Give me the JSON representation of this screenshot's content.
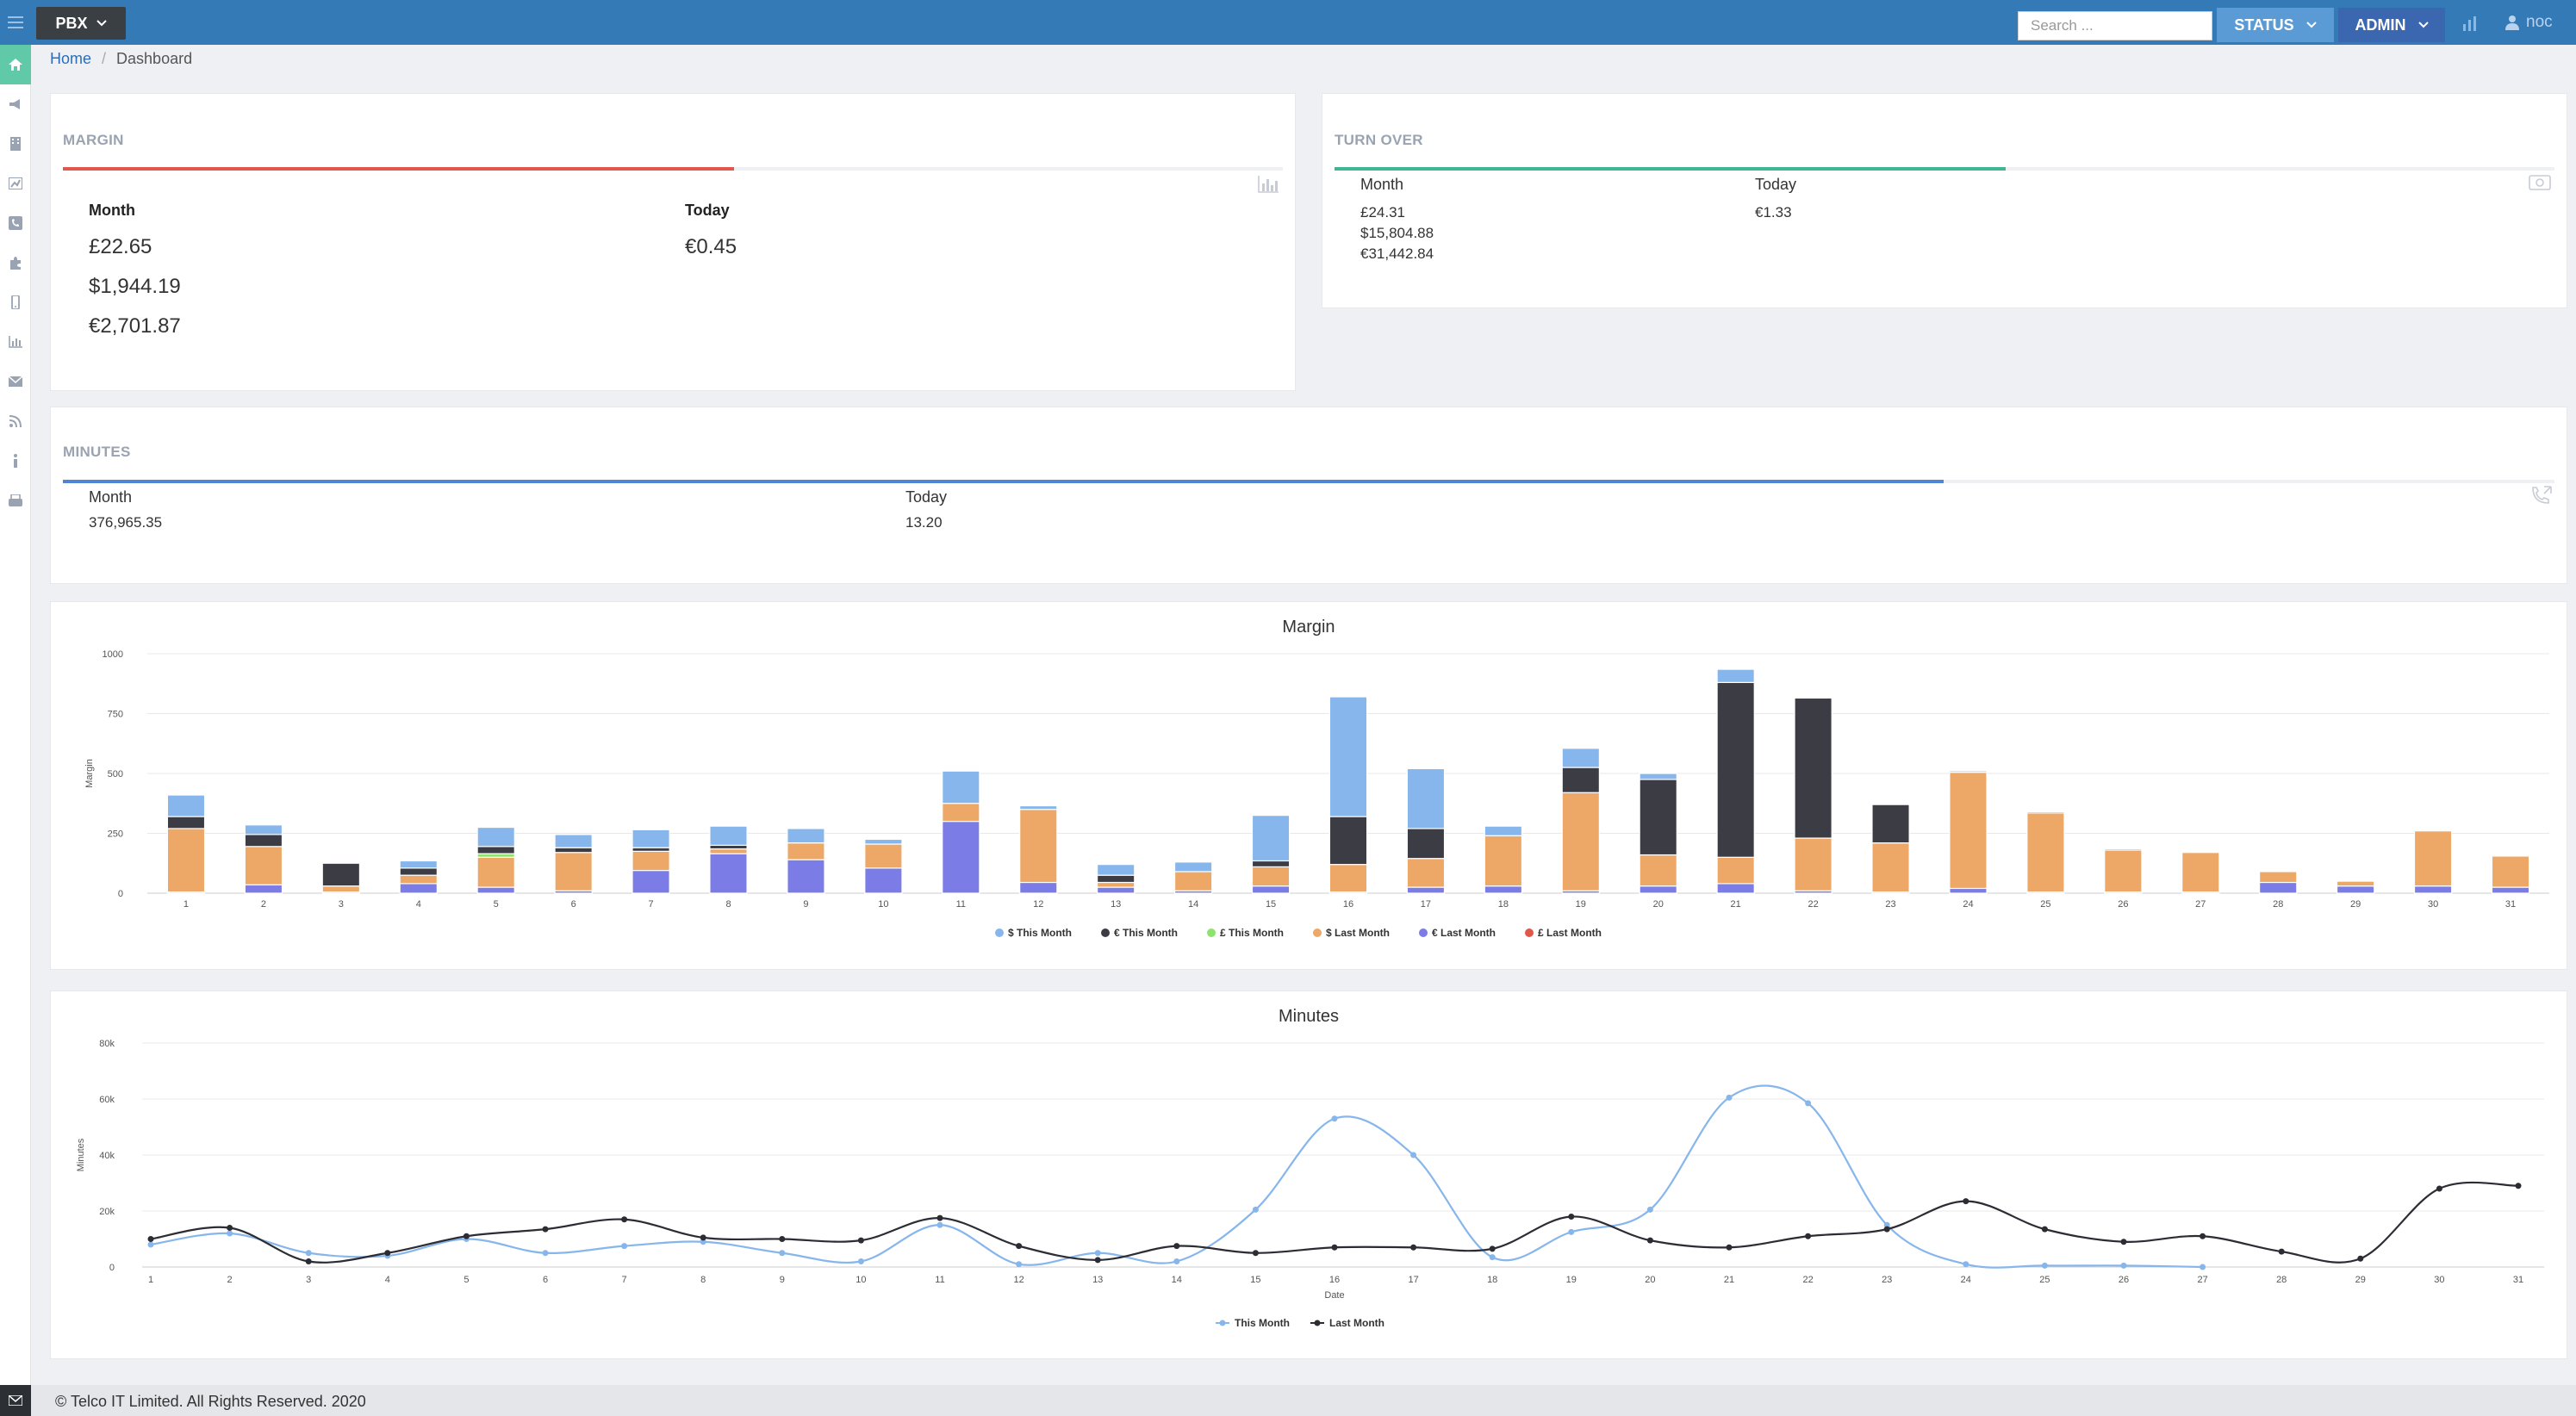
{
  "topbar": {
    "app_button": "PBX",
    "search_placeholder": "Search ...",
    "status_button": "STATUS",
    "admin_button": "ADMIN",
    "user_name": "noc"
  },
  "sidebar": {
    "items": [
      "home-icon",
      "megaphone-icon",
      "building-icon",
      "network-icon",
      "phone-icon",
      "puzzle-icon",
      "mobile-icon",
      "bar-chart-icon",
      "envelope-icon",
      "rss-icon",
      "info-icon",
      "fax-icon"
    ],
    "active": "home-icon"
  },
  "breadcrumb": {
    "home": "Home",
    "current": "Dashboard"
  },
  "margin_panel": {
    "title": "MARGIN",
    "progress": 0.55,
    "color": "#e0584b",
    "month_label": "Month",
    "today_label": "Today",
    "month_values": [
      "£22.65",
      "$1,944.19",
      "€2,701.87"
    ],
    "today_value": "€0.45"
  },
  "turnover_panel": {
    "title": "TURN OVER",
    "progress": 0.55,
    "color": "#3fb596",
    "month_label": "Month",
    "today_label": "Today",
    "month_values": [
      "£24.31",
      "$15,804.88",
      "€31,442.84"
    ],
    "today_value": "€1.33"
  },
  "minutes_panel": {
    "title": "MINUTES",
    "progress": 0.755,
    "color": "#4f86d4",
    "month_label": "Month",
    "today_label": "Today",
    "month_value": "376,965.35",
    "today_value": "13.20"
  },
  "footer": {
    "text": "© Telco IT Limited. All Rights Reserved. 2020"
  },
  "chart_data": [
    {
      "type": "bar",
      "stacked": true,
      "title": "Margin",
      "xlabel": "",
      "ylabel": "Margin",
      "ylim": [
        0,
        1000
      ],
      "yticks": [
        0,
        250,
        500,
        750,
        1000
      ],
      "grid": true,
      "legend": "bottom",
      "categories": [
        "1",
        "2",
        "3",
        "4",
        "5",
        "6",
        "7",
        "8",
        "9",
        "10",
        "11",
        "12",
        "13",
        "14",
        "15",
        "16",
        "17",
        "18",
        "19",
        "20",
        "21",
        "22",
        "23",
        "24",
        "25",
        "26",
        "27",
        "28",
        "29",
        "30",
        "31"
      ],
      "series": [
        {
          "name": "€ Last Month",
          "color": "#7b7ce6",
          "values": [
            5,
            35,
            5,
            40,
            25,
            10,
            95,
            165,
            140,
            105,
            300,
            45,
            25,
            10,
            30,
            5,
            25,
            30,
            10,
            30,
            40,
            10,
            5,
            20,
            5,
            5,
            5,
            45,
            30,
            30,
            25
          ]
        },
        {
          "name": "£ Last Month",
          "color": "#e0584b",
          "values": [
            0,
            0,
            0,
            0,
            0,
            0,
            0,
            0,
            0,
            0,
            0,
            0,
            0,
            0,
            0,
            0,
            0,
            0,
            0,
            0,
            0,
            0,
            0,
            0,
            0,
            0,
            0,
            0,
            0,
            0,
            0
          ]
        },
        {
          "name": "$ Last Month",
          "color": "#eda766",
          "values": [
            265,
            160,
            25,
            35,
            125,
            160,
            80,
            20,
            70,
            100,
            75,
            305,
            20,
            80,
            80,
            115,
            120,
            210,
            410,
            130,
            110,
            220,
            205,
            485,
            330,
            175,
            165,
            45,
            20,
            230,
            130
          ]
        },
        {
          "name": "£ This Month",
          "color": "#8ee36f",
          "values": [
            0,
            0,
            0,
            0,
            15,
            0,
            0,
            0,
            0,
            0,
            0,
            0,
            0,
            0,
            0,
            0,
            0,
            0,
            0,
            0,
            0,
            0,
            0,
            0,
            0,
            0,
            0,
            0,
            0,
            0,
            0
          ]
        },
        {
          "name": "€ This Month",
          "color": "#3c3c44",
          "values": [
            50,
            50,
            95,
            30,
            30,
            20,
            15,
            15,
            0,
            0,
            0,
            0,
            30,
            0,
            25,
            200,
            125,
            0,
            105,
            315,
            730,
            585,
            160,
            5,
            5,
            5,
            0,
            0,
            0,
            0,
            0
          ]
        },
        {
          "name": "$ This Month",
          "color": "#86b6eb",
          "values": [
            90,
            40,
            0,
            30,
            80,
            55,
            75,
            80,
            60,
            20,
            135,
            15,
            45,
            40,
            190,
            500,
            250,
            40,
            80,
            25,
            55,
            0,
            0,
            0,
            0,
            0,
            0,
            0,
            0,
            0,
            0
          ]
        }
      ],
      "legend_order": [
        "$ This Month",
        "€ This Month",
        "£ This Month",
        "$ Last Month",
        "€ Last Month",
        "£ Last Month"
      ]
    },
    {
      "type": "line",
      "title": "Minutes",
      "xlabel": "Date",
      "ylabel": "Minutes",
      "ylim": [
        0,
        80000
      ],
      "yticks": [
        0,
        20000,
        40000,
        60000,
        80000
      ],
      "ytick_labels": [
        "0",
        "20k",
        "40k",
        "60k",
        "80k"
      ],
      "grid": true,
      "legend": "bottom",
      "x": [
        1,
        2,
        3,
        4,
        5,
        6,
        7,
        8,
        9,
        10,
        11,
        12,
        13,
        14,
        15,
        16,
        17,
        18,
        19,
        20,
        21,
        22,
        23,
        24,
        25,
        26,
        27,
        28,
        29,
        30,
        31
      ],
      "series": [
        {
          "name": "This Month",
          "color": "#86b6eb",
          "values": [
            8000,
            12000,
            5000,
            4000,
            10000,
            5000,
            7500,
            9000,
            5000,
            2000,
            15000,
            1000,
            5000,
            2000,
            20500,
            53000,
            40000,
            3500,
            12500,
            20500,
            60500,
            58500,
            15000,
            1000,
            500,
            500,
            0,
            null,
            null,
            null,
            null
          ]
        },
        {
          "name": "Last Month",
          "color": "#2c2c34",
          "values": [
            10000,
            14000,
            2000,
            5000,
            11000,
            13500,
            17000,
            10500,
            10000,
            9500,
            17500,
            7500,
            2500,
            7500,
            5000,
            7000,
            7000,
            6500,
            18000,
            9500,
            7000,
            11000,
            13500,
            23500,
            13500,
            9000,
            11000,
            5500,
            3000,
            28000,
            29000
          ]
        }
      ]
    }
  ]
}
